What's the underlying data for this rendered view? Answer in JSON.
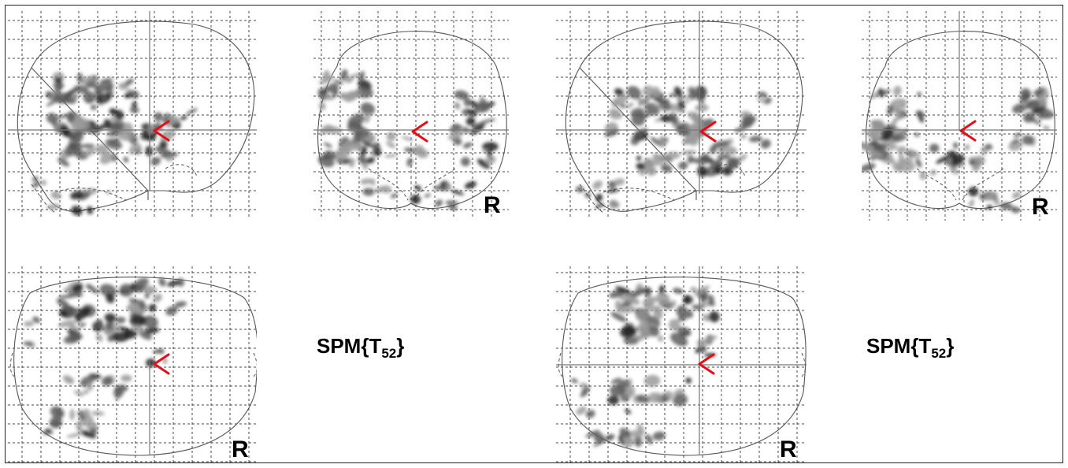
{
  "figure": {
    "side_label": "R",
    "stat_label_prefix": "SPM{T",
    "stat_label_sub": "52",
    "stat_label_suffix": "}"
  },
  "colors": {
    "grid": "#4a4a4a",
    "outline": "#555555",
    "crosshair": "#777777",
    "cursor": "#e0101a",
    "blob_dark": "#1e1e1e",
    "blob_mid": "#5c5c5c",
    "blob_light": "#9a9a9a"
  },
  "groups": [
    {
      "name": "left-group",
      "views": [
        "sagittal",
        "coronal",
        "axial"
      ]
    },
    {
      "name": "right-group",
      "views": [
        "sagittal",
        "coronal",
        "axial"
      ]
    }
  ]
}
